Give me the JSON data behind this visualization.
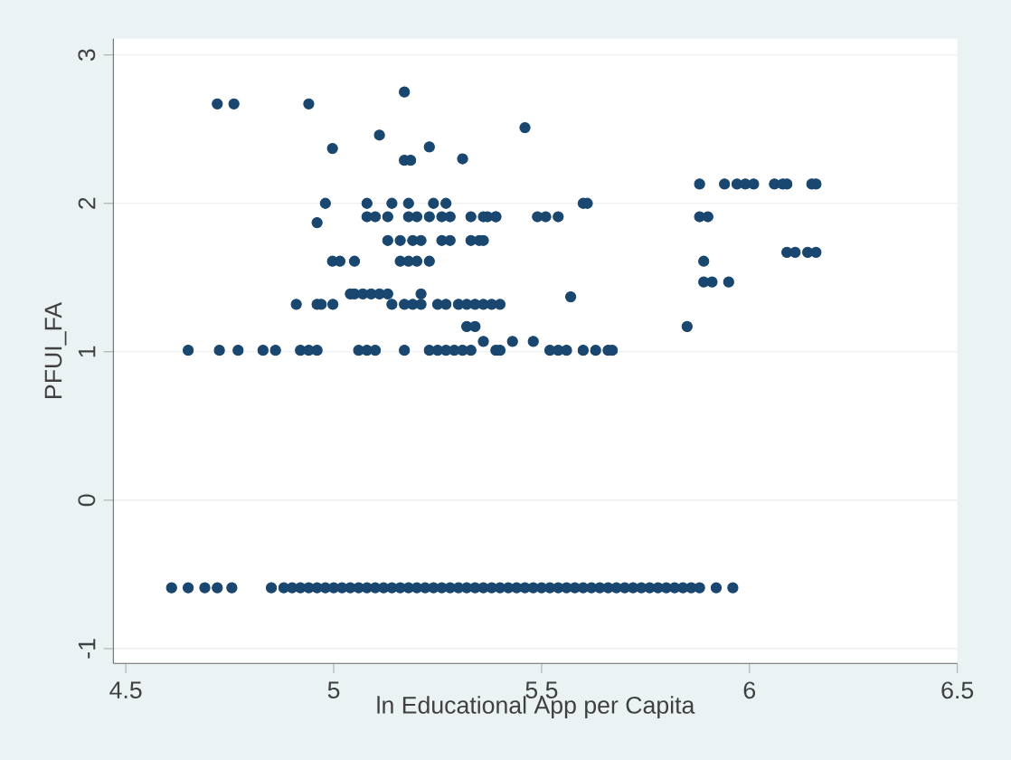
{
  "chart_data": {
    "type": "scatter",
    "xlabel": "ln Educational App per Capita",
    "ylabel": "PFUI_FA",
    "color": "#1a476f",
    "grid": "y",
    "xlim": [
      4.47,
      6.5
    ],
    "ylim": [
      -1.1,
      3.11
    ],
    "xticks": [
      4.5,
      5,
      5.5,
      6,
      6.5
    ],
    "yticks": [
      -1,
      0,
      1,
      2,
      3
    ],
    "x": [
      4.72,
      4.76,
      4.94,
      5.17,
      5.11,
      4.997,
      5.23,
      5.17,
      5.185,
      5.31,
      5.46,
      5.88,
      5.94,
      5.97,
      5.99,
      6.01,
      6.06,
      6.08,
      6.09,
      6.15,
      6.16,
      5.6,
      5.61,
      5.37,
      5.39,
      5.49,
      5.51,
      5.54,
      5.88,
      5.9,
      5.08,
      5.1,
      5.13,
      5.18,
      5.2,
      5.23,
      5.26,
      5.28,
      5.33,
      5.36,
      5.39,
      4.98,
      5.08,
      5.14,
      5.18,
      5.24,
      5.27,
      4.96,
      5.13,
      5.16,
      5.19,
      5.21,
      5.26,
      5.28,
      5.33,
      5.35,
      5.36,
      4.997,
      5.015,
      5.05,
      5.16,
      5.18,
      5.2,
      5.23,
      5.89,
      6.09,
      6.11,
      6.14,
      6.16,
      5.89,
      5.91,
      5.95,
      5.04,
      5.05,
      5.07,
      5.09,
      5.11,
      5.13,
      5.21,
      4.91,
      4.96,
      4.97,
      4.998,
      5.14,
      5.17,
      5.19,
      5.21,
      5.25,
      5.27,
      5.3,
      5.32,
      5.34,
      5.36,
      5.38,
      5.4,
      5.32,
      5.34,
      5.57,
      5.85,
      4.65,
      4.725,
      4.77,
      4.83,
      4.86,
      4.92,
      4.94,
      4.96,
      5.06,
      5.08,
      5.1,
      5.17,
      5.23,
      5.25,
      5.27,
      5.29,
      5.31,
      5.33,
      5.36,
      5.39,
      5.43,
      5.4,
      5.48,
      5.52,
      5.54,
      5.56,
      5.6,
      5.63,
      5.66,
      5.67,
      4.61,
      4.65,
      4.69,
      4.72,
      4.755,
      4.85,
      4.88,
      4.9,
      4.92,
      4.94,
      4.96,
      4.98,
      5.0,
      5.02,
      5.04,
      5.06,
      5.08,
      5.1,
      5.12,
      5.14,
      5.16,
      5.18,
      5.2,
      5.22,
      5.24,
      5.26,
      5.28,
      5.3,
      5.32,
      5.34,
      5.36,
      5.38,
      5.4,
      5.42,
      5.44,
      5.46,
      5.48,
      5.5,
      5.52,
      5.54,
      5.56,
      5.58,
      5.6,
      5.62,
      5.64,
      5.66,
      5.68,
      5.7,
      5.72,
      5.74,
      5.76,
      5.78,
      5.8,
      5.82,
      5.84,
      5.86,
      5.88,
      5.92,
      5.96
    ],
    "values": [
      2.67,
      2.67,
      2.67,
      2.75,
      2.46,
      2.37,
      2.38,
      2.29,
      2.29,
      2.3,
      2.51,
      2.13,
      2.13,
      2.13,
      2.13,
      2.13,
      2.13,
      2.13,
      2.13,
      2.13,
      2.13,
      2.0,
      2.0,
      1.91,
      1.91,
      1.91,
      1.91,
      1.91,
      1.91,
      1.91,
      1.91,
      1.91,
      1.91,
      1.91,
      1.91,
      1.91,
      1.91,
      1.91,
      1.91,
      1.91,
      1.91,
      2.0,
      2.0,
      2.0,
      2.0,
      2.0,
      2.0,
      1.87,
      1.75,
      1.75,
      1.75,
      1.75,
      1.75,
      1.75,
      1.75,
      1.75,
      1.75,
      1.61,
      1.61,
      1.61,
      1.61,
      1.61,
      1.61,
      1.61,
      1.61,
      1.67,
      1.67,
      1.67,
      1.67,
      1.47,
      1.47,
      1.47,
      1.39,
      1.39,
      1.39,
      1.39,
      1.39,
      1.39,
      1.39,
      1.32,
      1.32,
      1.32,
      1.32,
      1.32,
      1.32,
      1.32,
      1.32,
      1.32,
      1.32,
      1.32,
      1.32,
      1.32,
      1.32,
      1.32,
      1.32,
      1.17,
      1.17,
      1.37,
      1.17,
      1.01,
      1.01,
      1.01,
      1.01,
      1.01,
      1.01,
      1.01,
      1.01,
      1.01,
      1.01,
      1.01,
      1.01,
      1.01,
      1.01,
      1.01,
      1.01,
      1.01,
      1.01,
      1.07,
      1.01,
      1.07,
      1.01,
      1.07,
      1.01,
      1.01,
      1.01,
      1.01,
      1.01,
      1.01,
      1.01,
      -0.59,
      -0.59,
      -0.59,
      -0.59,
      -0.59,
      -0.59,
      -0.59,
      -0.59,
      -0.59,
      -0.59,
      -0.59,
      -0.59,
      -0.59,
      -0.59,
      -0.59,
      -0.59,
      -0.59,
      -0.59,
      -0.59,
      -0.59,
      -0.59,
      -0.59,
      -0.59,
      -0.59,
      -0.59,
      -0.59,
      -0.59,
      -0.59,
      -0.59,
      -0.59,
      -0.59,
      -0.59,
      -0.59,
      -0.59,
      -0.59,
      -0.59,
      -0.59,
      -0.59,
      -0.59,
      -0.59,
      -0.59,
      -0.59,
      -0.59,
      -0.59,
      -0.59,
      -0.59,
      -0.59,
      -0.59,
      -0.59,
      -0.59,
      -0.59,
      -0.59,
      -0.59,
      -0.59,
      -0.59,
      -0.59,
      -0.59,
      -0.59,
      -0.59
    ]
  }
}
